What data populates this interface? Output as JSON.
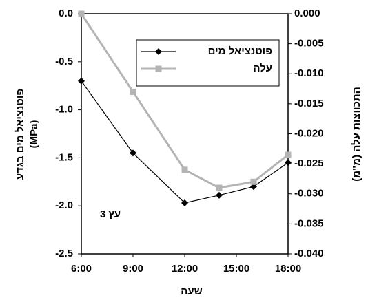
{
  "chart_data": {
    "type": "line",
    "x_label": "שעה",
    "y_label": [
      "פוטנציאל מים בגדע",
      "(MPa)"
    ],
    "y2_label": "התכווצות עלה (מ\"מ)",
    "annotation": "עץ 3",
    "x": [
      6,
      9,
      12,
      14,
      16,
      18
    ],
    "xlim": [
      6,
      18
    ],
    "xticks": [
      {
        "value": 6,
        "label": "6:00"
      },
      {
        "value": 9,
        "label": "9:00"
      },
      {
        "value": 12,
        "label": "12:00"
      },
      {
        "value": 15,
        "label": "15:00"
      },
      {
        "value": 18,
        "label": "18:00"
      }
    ],
    "ylim": [
      -2.5,
      0
    ],
    "yticks": [
      {
        "value": 0,
        "label": "0.0"
      },
      -0.5,
      {
        "value": -1,
        "label": "-1.0"
      },
      -1.5,
      {
        "value": -2,
        "label": "-2.0"
      },
      -2.5
    ],
    "y2lim": [
      -0.04,
      0
    ],
    "y2ticks": [
      {
        "value": 0,
        "label": "0.000"
      },
      -0.005,
      {
        "value": -0.01,
        "label": "-0.010"
      },
      -0.015,
      {
        "value": -0.02,
        "label": "-0.020"
      },
      -0.025,
      {
        "value": -0.03,
        "label": "-0.030"
      },
      -0.035,
      {
        "value": -0.04,
        "label": "-0.040"
      }
    ],
    "series": [
      {
        "name": "פוטנציאל מים",
        "color": "#000000",
        "marker": "diamond",
        "values": [
          -0.7,
          -1.45,
          -1.97,
          -1.89,
          -1.8,
          -1.55
        ]
      },
      {
        "name": "עלה",
        "color": "#b4b4b4",
        "marker": "square",
        "axis": "y2",
        "values": [
          0,
          -0.013,
          -0.026,
          -0.029,
          -0.028,
          -0.0235
        ]
      }
    ]
  }
}
